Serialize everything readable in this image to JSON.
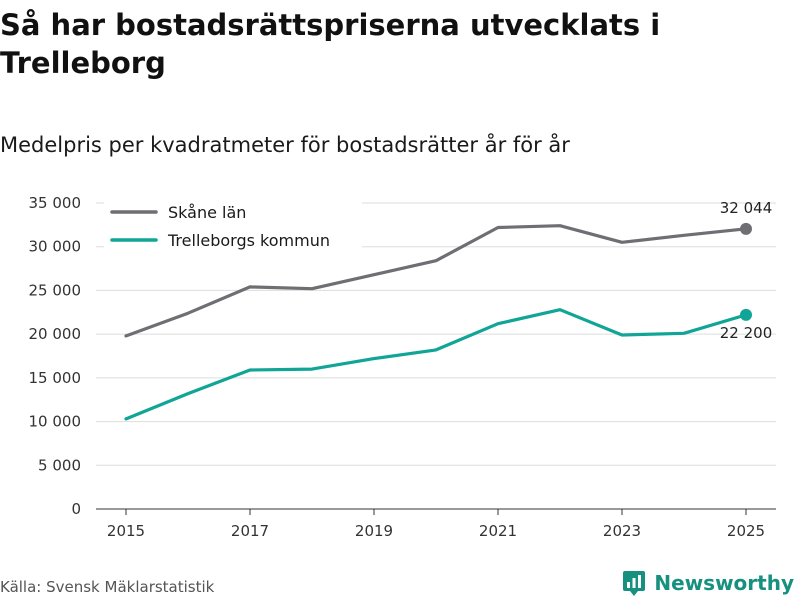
{
  "header": {
    "title": "Så har bostadsrättspriserna utvecklats i Trelleborg",
    "subtitle": "Medelpris per kvadratmeter för bostadsrätter år för år"
  },
  "footer": {
    "source": "Källa: Svensk Mäklarstatistik",
    "brand": "Newsworthy"
  },
  "colors": {
    "skane": "#6e6e73",
    "trelleborg": "#10a596",
    "grid": "#dddddd"
  },
  "chart_data": {
    "type": "line",
    "title": "Så har bostadsrättspriserna utvecklats i Trelleborg",
    "subtitle": "Medelpris per kvadratmeter för bostadsrätter år för år",
    "xlabel": "",
    "ylabel": "",
    "x": [
      2015,
      2016,
      2017,
      2018,
      2019,
      2020,
      2021,
      2022,
      2023,
      2024,
      2025
    ],
    "xticks": [
      "2015",
      "2017",
      "2019",
      "2021",
      "2023",
      "2025"
    ],
    "ylim": [
      0,
      35000
    ],
    "yticks": [
      "0",
      "5 000",
      "10 000",
      "15 000",
      "20 000",
      "25 000",
      "30 000",
      "35 000"
    ],
    "grid": true,
    "legend_position": "top-left",
    "series": [
      {
        "name": "Skåne län",
        "values": [
          19800,
          22400,
          25400,
          25200,
          26800,
          28400,
          32200,
          32400,
          30500,
          31300,
          32044
        ],
        "end_label": "32 044",
        "color": "#6e6e73"
      },
      {
        "name": "Trelleborgs kommun",
        "values": [
          10300,
          13200,
          15900,
          16000,
          17200,
          18200,
          21200,
          22800,
          19900,
          20100,
          22200
        ],
        "end_label": "22 200",
        "color": "#10a596"
      }
    ]
  }
}
